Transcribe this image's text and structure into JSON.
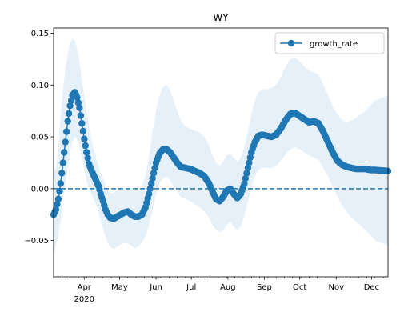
{
  "chart_data": {
    "type": "line",
    "title": "WY",
    "xlabel": "",
    "ylabel": "",
    "x_range": [
      "2020-03-06",
      "2020-12-15"
    ],
    "ylim": [
      -0.085,
      0.155
    ],
    "y_ticks": [
      -0.05,
      0.0,
      0.05,
      0.1,
      0.15
    ],
    "y_tick_labels": [
      "−0.05",
      "0.00",
      "0.05",
      "0.10",
      "0.15"
    ],
    "x_ticks": [
      {
        "date": "2020-04-01",
        "label": "Apr"
      },
      {
        "date": "2020-05-01",
        "label": "May"
      },
      {
        "date": "2020-06-01",
        "label": "Jun"
      },
      {
        "date": "2020-07-01",
        "label": "Jul"
      },
      {
        "date": "2020-08-01",
        "label": "Aug"
      },
      {
        "date": "2020-09-01",
        "label": "Sep"
      },
      {
        "date": "2020-10-01",
        "label": "Oct"
      },
      {
        "date": "2020-11-01",
        "label": "Nov"
      },
      {
        "date": "2020-12-01",
        "label": "Dec"
      }
    ],
    "year_label": "2020",
    "legend": {
      "position": "upper-right",
      "entries": [
        "growth_rate"
      ]
    },
    "reference_line": {
      "y": 0,
      "style": "dashed"
    },
    "colors": {
      "line": "#1f77b4",
      "band": "#dce9f5",
      "reference": "#1f77b4"
    },
    "series": [
      {
        "name": "growth_rate",
        "points": [
          [
            "2020-03-06",
            -0.025,
            -0.065,
            0.015
          ],
          [
            "2020-03-08",
            -0.02,
            -0.055,
            0.02
          ],
          [
            "2020-03-10",
            -0.01,
            -0.045,
            0.04
          ],
          [
            "2020-03-12",
            0.005,
            -0.03,
            0.07
          ],
          [
            "2020-03-14",
            0.025,
            -0.01,
            0.095
          ],
          [
            "2020-03-16",
            0.045,
            0.005,
            0.115
          ],
          [
            "2020-03-18",
            0.065,
            0.02,
            0.13
          ],
          [
            "2020-03-20",
            0.08,
            0.035,
            0.14
          ],
          [
            "2020-03-22",
            0.09,
            0.045,
            0.145
          ],
          [
            "2020-03-24",
            0.093,
            0.05,
            0.143
          ],
          [
            "2020-03-26",
            0.088,
            0.048,
            0.135
          ],
          [
            "2020-03-28",
            0.078,
            0.04,
            0.122
          ],
          [
            "2020-03-30",
            0.063,
            0.03,
            0.105
          ],
          [
            "2020-04-01",
            0.048,
            0.018,
            0.09
          ],
          [
            "2020-04-03",
            0.035,
            0.008,
            0.075
          ],
          [
            "2020-04-05",
            0.024,
            0.0,
            0.06
          ],
          [
            "2020-04-07",
            0.018,
            -0.005,
            0.048
          ],
          [
            "2020-04-09",
            0.013,
            -0.01,
            0.038
          ],
          [
            "2020-04-11",
            0.008,
            -0.015,
            0.03
          ],
          [
            "2020-04-13",
            0.003,
            -0.022,
            0.022
          ],
          [
            "2020-04-15",
            -0.005,
            -0.03,
            0.015
          ],
          [
            "2020-04-17",
            -0.012,
            -0.038,
            0.01
          ],
          [
            "2020-04-19",
            -0.02,
            -0.046,
            0.004
          ],
          [
            "2020-04-21",
            -0.025,
            -0.052,
            -0.002
          ],
          [
            "2020-04-23",
            -0.028,
            -0.056,
            -0.004
          ],
          [
            "2020-04-26",
            -0.029,
            -0.058,
            -0.004
          ],
          [
            "2020-04-29",
            -0.027,
            -0.056,
            -0.002
          ],
          [
            "2020-05-02",
            -0.025,
            -0.054,
            -0.001
          ],
          [
            "2020-05-05",
            -0.023,
            -0.052,
            0.0
          ],
          [
            "2020-05-08",
            -0.022,
            -0.053,
            0.001
          ],
          [
            "2020-05-11",
            -0.025,
            -0.055,
            -0.001
          ],
          [
            "2020-05-14",
            -0.027,
            -0.057,
            -0.002
          ],
          [
            "2020-05-17",
            -0.027,
            -0.056,
            -0.001
          ],
          [
            "2020-05-20",
            -0.025,
            -0.052,
            0.002
          ],
          [
            "2020-05-23",
            -0.018,
            -0.046,
            0.012
          ],
          [
            "2020-05-26",
            -0.005,
            -0.035,
            0.03
          ],
          [
            "2020-05-29",
            0.01,
            -0.02,
            0.055
          ],
          [
            "2020-06-01",
            0.025,
            -0.005,
            0.075
          ],
          [
            "2020-06-04",
            0.034,
            0.005,
            0.09
          ],
          [
            "2020-06-07",
            0.038,
            0.01,
            0.098
          ],
          [
            "2020-06-10",
            0.038,
            0.012,
            0.1
          ],
          [
            "2020-06-13",
            0.035,
            0.008,
            0.095
          ],
          [
            "2020-06-16",
            0.03,
            0.002,
            0.085
          ],
          [
            "2020-06-19",
            0.025,
            -0.003,
            0.075
          ],
          [
            "2020-06-22",
            0.021,
            -0.008,
            0.066
          ],
          [
            "2020-06-26",
            0.02,
            -0.01,
            0.06
          ],
          [
            "2020-06-30",
            0.019,
            -0.012,
            0.058
          ],
          [
            "2020-07-04",
            0.017,
            -0.015,
            0.056
          ],
          [
            "2020-07-08",
            0.015,
            -0.018,
            0.054
          ],
          [
            "2020-07-12",
            0.012,
            -0.022,
            0.05
          ],
          [
            "2020-07-16",
            0.005,
            -0.028,
            0.042
          ],
          [
            "2020-07-19",
            -0.003,
            -0.035,
            0.032
          ],
          [
            "2020-07-22",
            -0.01,
            -0.04,
            0.025
          ],
          [
            "2020-07-25",
            -0.012,
            -0.042,
            0.022
          ],
          [
            "2020-07-28",
            -0.008,
            -0.04,
            0.026
          ],
          [
            "2020-07-31",
            -0.002,
            -0.035,
            0.032
          ],
          [
            "2020-08-03",
            0.0,
            -0.032,
            0.034
          ],
          [
            "2020-08-06",
            -0.005,
            -0.037,
            0.03
          ],
          [
            "2020-08-09",
            -0.009,
            -0.04,
            0.026
          ],
          [
            "2020-08-12",
            -0.005,
            -0.036,
            0.03
          ],
          [
            "2020-08-15",
            0.005,
            -0.026,
            0.04
          ],
          [
            "2020-08-18",
            0.02,
            -0.012,
            0.055
          ],
          [
            "2020-08-21",
            0.035,
            0.002,
            0.072
          ],
          [
            "2020-08-24",
            0.045,
            0.012,
            0.085
          ],
          [
            "2020-08-27",
            0.051,
            0.018,
            0.093
          ],
          [
            "2020-08-30",
            0.052,
            0.02,
            0.096
          ],
          [
            "2020-09-03",
            0.051,
            0.02,
            0.096
          ],
          [
            "2020-09-07",
            0.05,
            0.02,
            0.097
          ],
          [
            "2020-09-11",
            0.052,
            0.022,
            0.1
          ],
          [
            "2020-09-15",
            0.058,
            0.027,
            0.108
          ],
          [
            "2020-09-19",
            0.066,
            0.033,
            0.118
          ],
          [
            "2020-09-23",
            0.072,
            0.038,
            0.125
          ],
          [
            "2020-09-27",
            0.073,
            0.04,
            0.127
          ],
          [
            "2020-10-01",
            0.07,
            0.038,
            0.123
          ],
          [
            "2020-10-05",
            0.067,
            0.035,
            0.118
          ],
          [
            "2020-10-09",
            0.064,
            0.032,
            0.114
          ],
          [
            "2020-10-13",
            0.065,
            0.03,
            0.112
          ],
          [
            "2020-10-17",
            0.063,
            0.028,
            0.11
          ],
          [
            "2020-10-21",
            0.055,
            0.02,
            0.1
          ],
          [
            "2020-10-25",
            0.045,
            0.012,
            0.09
          ],
          [
            "2020-10-29",
            0.035,
            0.002,
            0.08
          ],
          [
            "2020-11-02",
            0.027,
            -0.008,
            0.072
          ],
          [
            "2020-11-06",
            0.023,
            -0.016,
            0.066
          ],
          [
            "2020-11-10",
            0.021,
            -0.022,
            0.064
          ],
          [
            "2020-11-14",
            0.02,
            -0.028,
            0.066
          ],
          [
            "2020-11-18",
            0.019,
            -0.032,
            0.068
          ],
          [
            "2020-11-22",
            0.019,
            -0.036,
            0.072
          ],
          [
            "2020-11-26",
            0.019,
            -0.04,
            0.075
          ],
          [
            "2020-11-30",
            0.018,
            -0.045,
            0.08
          ],
          [
            "2020-12-04",
            0.018,
            -0.05,
            0.085
          ],
          [
            "2020-12-15",
            0.017,
            -0.055,
            0.09
          ]
        ]
      }
    ]
  }
}
